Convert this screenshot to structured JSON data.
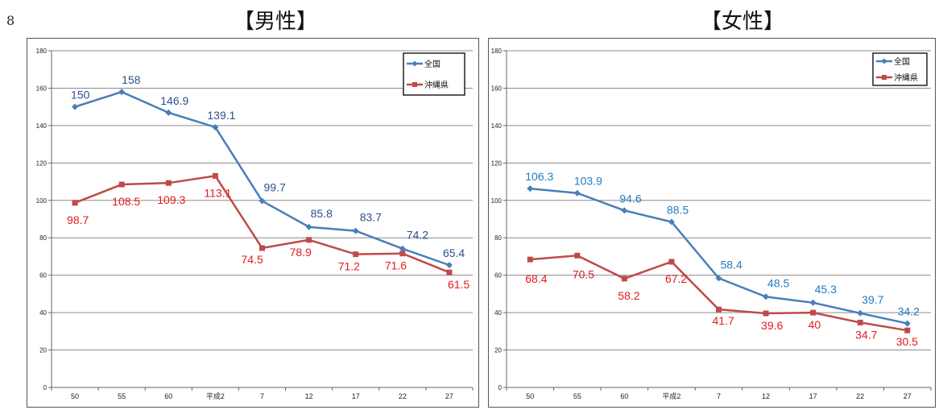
{
  "page_number": "8",
  "titles": {
    "male": "【男性】",
    "female": "【女性】"
  },
  "colors": {
    "national": "#4a7ebb",
    "okinawa": "#be4b48",
    "national_label": "#2f4f8a",
    "national_label_female": "#1f7cc1",
    "okinawa_label": "#e31a1c"
  },
  "chart_data": [
    {
      "type": "line",
      "title": "【男性】",
      "categories": [
        "50",
        "55",
        "60",
        "平成2",
        "7",
        "12",
        "17",
        "22",
        "27"
      ],
      "ylim": [
        0,
        180
      ],
      "yticks": [
        0,
        20,
        40,
        60,
        80,
        100,
        120,
        140,
        160,
        180
      ],
      "grid": true,
      "legend": "top-right",
      "series": [
        {
          "name": "全国",
          "values": [
            150,
            158,
            146.9,
            139.1,
            99.7,
            85.8,
            83.7,
            74.2,
            65.4
          ],
          "labels": [
            "150",
            "158",
            "146.9",
            "139.1",
            "99.7",
            "85.8",
            "83.7",
            "74.2",
            "65.4"
          ]
        },
        {
          "name": "沖縄県",
          "values": [
            98.7,
            108.5,
            109.3,
            113.1,
            74.5,
            78.9,
            71.2,
            71.6,
            61.5
          ],
          "labels": [
            "98.7",
            "108.5",
            "109.3",
            "113.1",
            "74.5",
            "78.9",
            "71.2",
            "71.6",
            "61.5"
          ]
        }
      ]
    },
    {
      "type": "line",
      "title": "【女性】",
      "categories": [
        "50",
        "55",
        "60",
        "平成2",
        "7",
        "12",
        "17",
        "22",
        "27"
      ],
      "ylim": [
        0,
        180
      ],
      "yticks": [
        0,
        20,
        40,
        60,
        80,
        100,
        120,
        140,
        160,
        180
      ],
      "grid": true,
      "legend": "top-right",
      "series": [
        {
          "name": "全国",
          "values": [
            106.3,
            103.9,
            94.6,
            88.5,
            58.4,
            48.5,
            45.3,
            39.7,
            34.2
          ],
          "labels": [
            "106.3",
            "103.9",
            "94.6",
            "88.5",
            "58.4",
            "48.5",
            "45.3",
            "39.7",
            "34.2"
          ]
        },
        {
          "name": "沖縄県",
          "values": [
            68.4,
            70.5,
            58.2,
            67.2,
            41.7,
            39.6,
            40,
            34.7,
            30.5
          ],
          "labels": [
            "68.4",
            "70.5",
            "58.2",
            "67.2",
            "41.7",
            "39.6",
            "40",
            "34.7",
            "30.5"
          ]
        }
      ]
    }
  ]
}
